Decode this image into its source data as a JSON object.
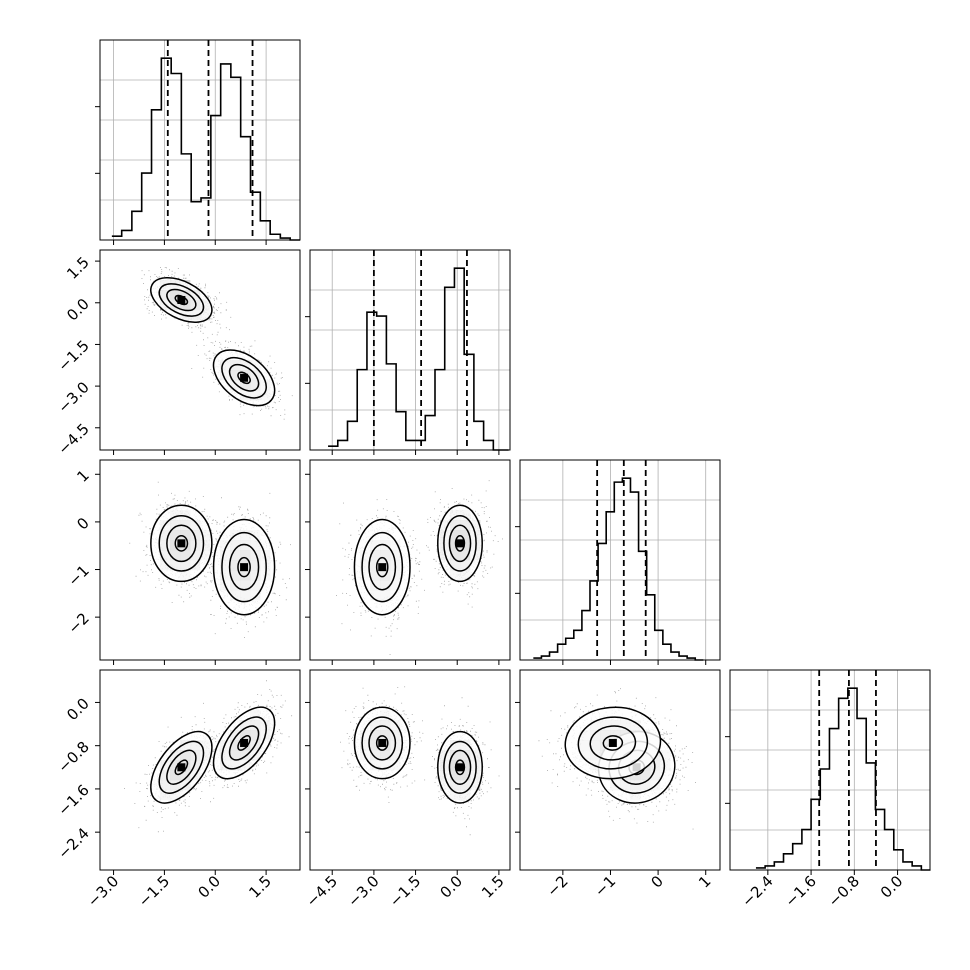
{
  "chart_data": {
    "type": "corner",
    "grid": true,
    "colors": {
      "line": "#000000",
      "grid": "#b0b0b0",
      "points": "#000000",
      "density": "#000000"
    },
    "parameters": [
      {
        "range": [
          -3.4,
          2.5
        ],
        "ticks": [
          -3.0,
          -1.5,
          0.0,
          1.5
        ],
        "tick_labels": [
          "−3.0",
          "−1.5",
          "0.0",
          "1.5"
        ]
      },
      {
        "range": [
          -5.3,
          1.9
        ],
        "ticks": [
          -4.5,
          -3.0,
          -1.5,
          0.0,
          1.5
        ],
        "tick_labels": [
          "−4.5",
          "−3.0",
          "−1.5",
          "0.0",
          "1.5"
        ]
      },
      {
        "range": [
          -2.9,
          1.3
        ],
        "ticks": [
          -2,
          -1,
          0,
          1
        ],
        "tick_labels": [
          "−2",
          "−1",
          "0",
          "1"
        ]
      },
      {
        "range": [
          -3.1,
          0.6
        ],
        "ticks": [
          -2.4,
          -1.6,
          -0.8,
          0.0
        ],
        "tick_labels": [
          "−2.4",
          "−1.6",
          "−0.8",
          "0.0"
        ]
      }
    ],
    "histograms": [
      {
        "param": 0,
        "bin_edges": [
          -3.05,
          -2.76,
          -2.46,
          -2.17,
          -1.88,
          -1.59,
          -1.3,
          -1.0,
          -0.71,
          -0.42,
          -0.13,
          0.16,
          0.46,
          0.75,
          1.04,
          1.33,
          1.62,
          1.92,
          2.21,
          2.5
        ],
        "counts": [
          2,
          5,
          15,
          35,
          68,
          95,
          87,
          45,
          20,
          22,
          65,
          92,
          85,
          54,
          25,
          10,
          3,
          1,
          0
        ],
        "quantiles": [
          -1.4,
          -0.2,
          1.1
        ]
      },
      {
        "param": 1,
        "bin_edges": [
          -4.65,
          -4.3,
          -3.95,
          -3.6,
          -3.25,
          -2.9,
          -2.55,
          -2.2,
          -1.85,
          -1.5,
          -1.15,
          -0.8,
          -0.45,
          -0.1,
          0.25,
          0.6,
          0.95,
          1.3,
          1.65,
          1.85
        ],
        "counts": [
          2,
          5,
          15,
          42,
          72,
          70,
          45,
          20,
          5,
          5,
          18,
          42,
          85,
          95,
          50,
          15,
          5,
          0,
          0
        ],
        "quantiles": [
          -3.0,
          -1.3,
          0.35
        ]
      },
      {
        "param": 2,
        "bin_edges": [
          -2.62,
          -2.45,
          -2.28,
          -2.11,
          -1.94,
          -1.77,
          -1.6,
          -1.43,
          -1.26,
          -1.09,
          -0.92,
          -0.75,
          -0.58,
          -0.41,
          -0.24,
          -0.07,
          0.1,
          0.27,
          0.44,
          0.61,
          0.78,
          0.95
        ],
        "counts": [
          1,
          2,
          4,
          8,
          11,
          15,
          25,
          40,
          59,
          75,
          90,
          92,
          85,
          55,
          33,
          15,
          8,
          4,
          2,
          1,
          0
        ],
        "quantiles": [
          -1.28,
          -0.72,
          -0.26
        ]
      },
      {
        "param": 3,
        "bin_edges": [
          -2.62,
          -2.45,
          -2.28,
          -2.11,
          -1.94,
          -1.77,
          -1.6,
          -1.43,
          -1.26,
          -1.09,
          -0.92,
          -0.75,
          -0.58,
          -0.41,
          -0.24,
          -0.07,
          0.1,
          0.27,
          0.44,
          0.61
        ],
        "counts": [
          1,
          2,
          4,
          8,
          13,
          20,
          35,
          50,
          70,
          85,
          90,
          75,
          53,
          30,
          20,
          10,
          4,
          2,
          0
        ],
        "quantiles": [
          -1.45,
          -0.9,
          -0.4
        ]
      }
    ],
    "components": [
      {
        "weight": 0.5,
        "mean": [
          -1.0,
          0.1,
          -0.45,
          -1.2
        ],
        "sd": [
          0.45,
          0.4,
          0.4,
          0.33
        ]
      },
      {
        "weight": 0.5,
        "mean": [
          0.85,
          -2.7,
          -0.95,
          -0.75
        ],
        "sd": [
          0.45,
          0.5,
          0.5,
          0.33
        ]
      }
    ],
    "pairs": [
      {
        "x": 0,
        "y": 1,
        "corr": -0.45
      },
      {
        "x": 0,
        "y": 2,
        "corr": 0.0
      },
      {
        "x": 1,
        "y": 2,
        "corr": 0.0
      },
      {
        "x": 0,
        "y": 3,
        "corr": 0.55
      },
      {
        "x": 1,
        "y": 3,
        "corr": 0.0
      },
      {
        "x": 2,
        "y": 3,
        "corr": 0.05
      }
    ]
  }
}
